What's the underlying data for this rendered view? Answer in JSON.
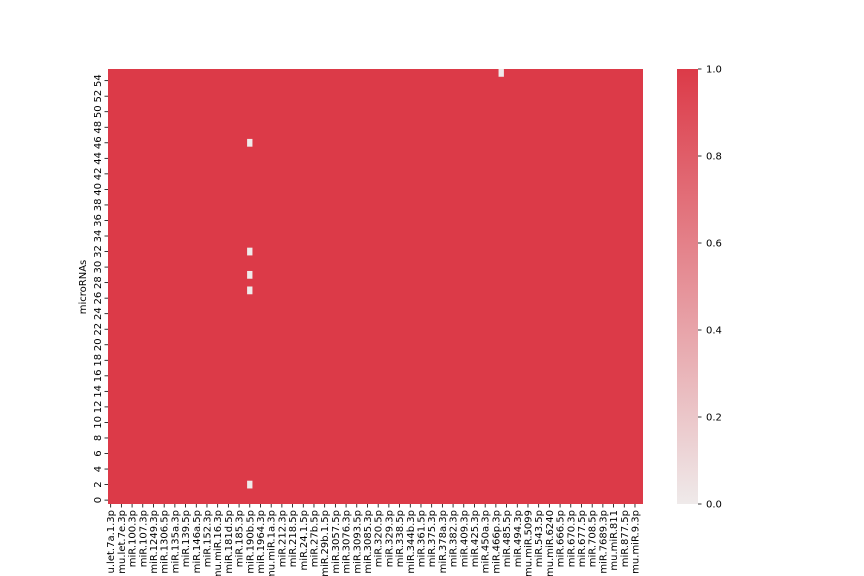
{
  "chart_data": {
    "type": "heatmap",
    "ylabel": "microRNAs",
    "xlabel": "",
    "y_tick_labels": [
      "0",
      "2",
      "4",
      "6",
      "8",
      "10",
      "12",
      "14",
      "16",
      "18",
      "20",
      "22",
      "24",
      "26",
      "28",
      "30",
      "32",
      "34",
      "36",
      "38",
      "40",
      "42",
      "44",
      "46",
      "48",
      "50",
      "52",
      "54"
    ],
    "x_tick_labels": [
      "u.let.7a.1.3p",
      "mu.let.7e.3p",
      "miR.100.3p",
      "miR.107.3p",
      "miR.1249.3p",
      "miR.1306.5p",
      "miR.135a.3p",
      "miR.139.5p",
      "miR.146a.5p",
      "miR.152.3p",
      "mu.miR.16.3p",
      "miR.181d.5p",
      "miR.185.3p",
      "miR.190b.5p",
      "miR.1964.3p",
      "mu.miR.1a.3p",
      "miR.212.3p",
      "miR.218.5p",
      "miR.24.1.5p",
      "miR.27b.5p",
      "miR.29b.1.5p",
      "miR.3057.5p",
      "miR.3076.3p",
      "miR.3093.5p",
      "miR.3085.3p",
      "miR.320.5p",
      "miR.329.3p",
      "miR.338.5p",
      "miR.344b.3p",
      "miR.361.5p",
      "miR.375.3p",
      "miR.378a.3p",
      "miR.382.3p",
      "miR.409.3p",
      "miR.425.3p",
      "miR.450a.3p",
      "miR.466p.3p",
      "miR.485.5p",
      "miR.494.3p",
      "mu.miR.5099",
      "miR.543.5p",
      "mu.miR.6240",
      "miR.666.5p",
      "miR.670.3p",
      "miR.677.5p",
      "miR.708.5p",
      "miR.7689.3p",
      "mu.miR.811",
      "miR.877.5p",
      "mu.miR.9.3p"
    ],
    "n_rows": 56,
    "n_cols": 100,
    "default_value": 1.0,
    "zero_cells": [
      {
        "row": 2,
        "col": 26
      },
      {
        "row": 27,
        "col": 26
      },
      {
        "row": 29,
        "col": 26
      },
      {
        "row": 32,
        "col": 26
      },
      {
        "row": 46,
        "col": 26
      },
      {
        "row": 55,
        "col": 73
      }
    ],
    "colorbar": {
      "min": 0.0,
      "max": 1.0,
      "low_color": "#efeaea",
      "high_color": "#dc3a48",
      "tick_labels": [
        "0.0",
        "0.2",
        "0.4",
        "0.6",
        "0.8",
        "1.0"
      ],
      "tick_values": [
        0.0,
        0.2,
        0.4,
        0.6,
        0.8,
        1.0
      ]
    }
  }
}
